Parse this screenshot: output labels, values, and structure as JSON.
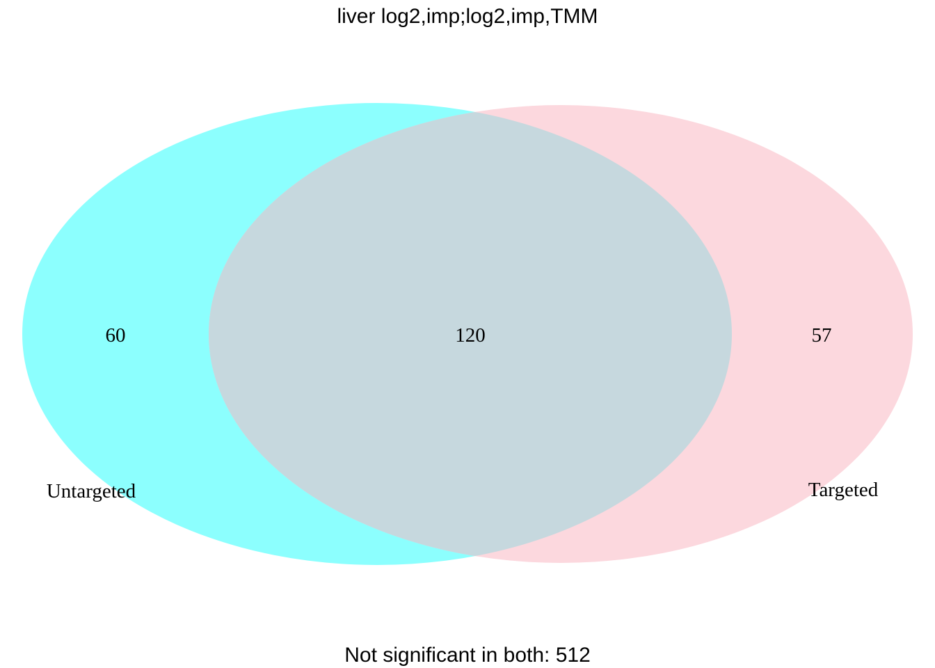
{
  "title": "liver log2,imp;log2,imp,TMM",
  "sets": [
    {
      "name": "Untargeted",
      "only_count": "60",
      "color": "#8cfffe"
    },
    {
      "name": "Targeted",
      "only_count": "57",
      "color": "#fcd8de"
    }
  ],
  "intersection": {
    "count": "120",
    "color": "#c6d8de"
  },
  "footer": "Not significant in both: 512"
}
